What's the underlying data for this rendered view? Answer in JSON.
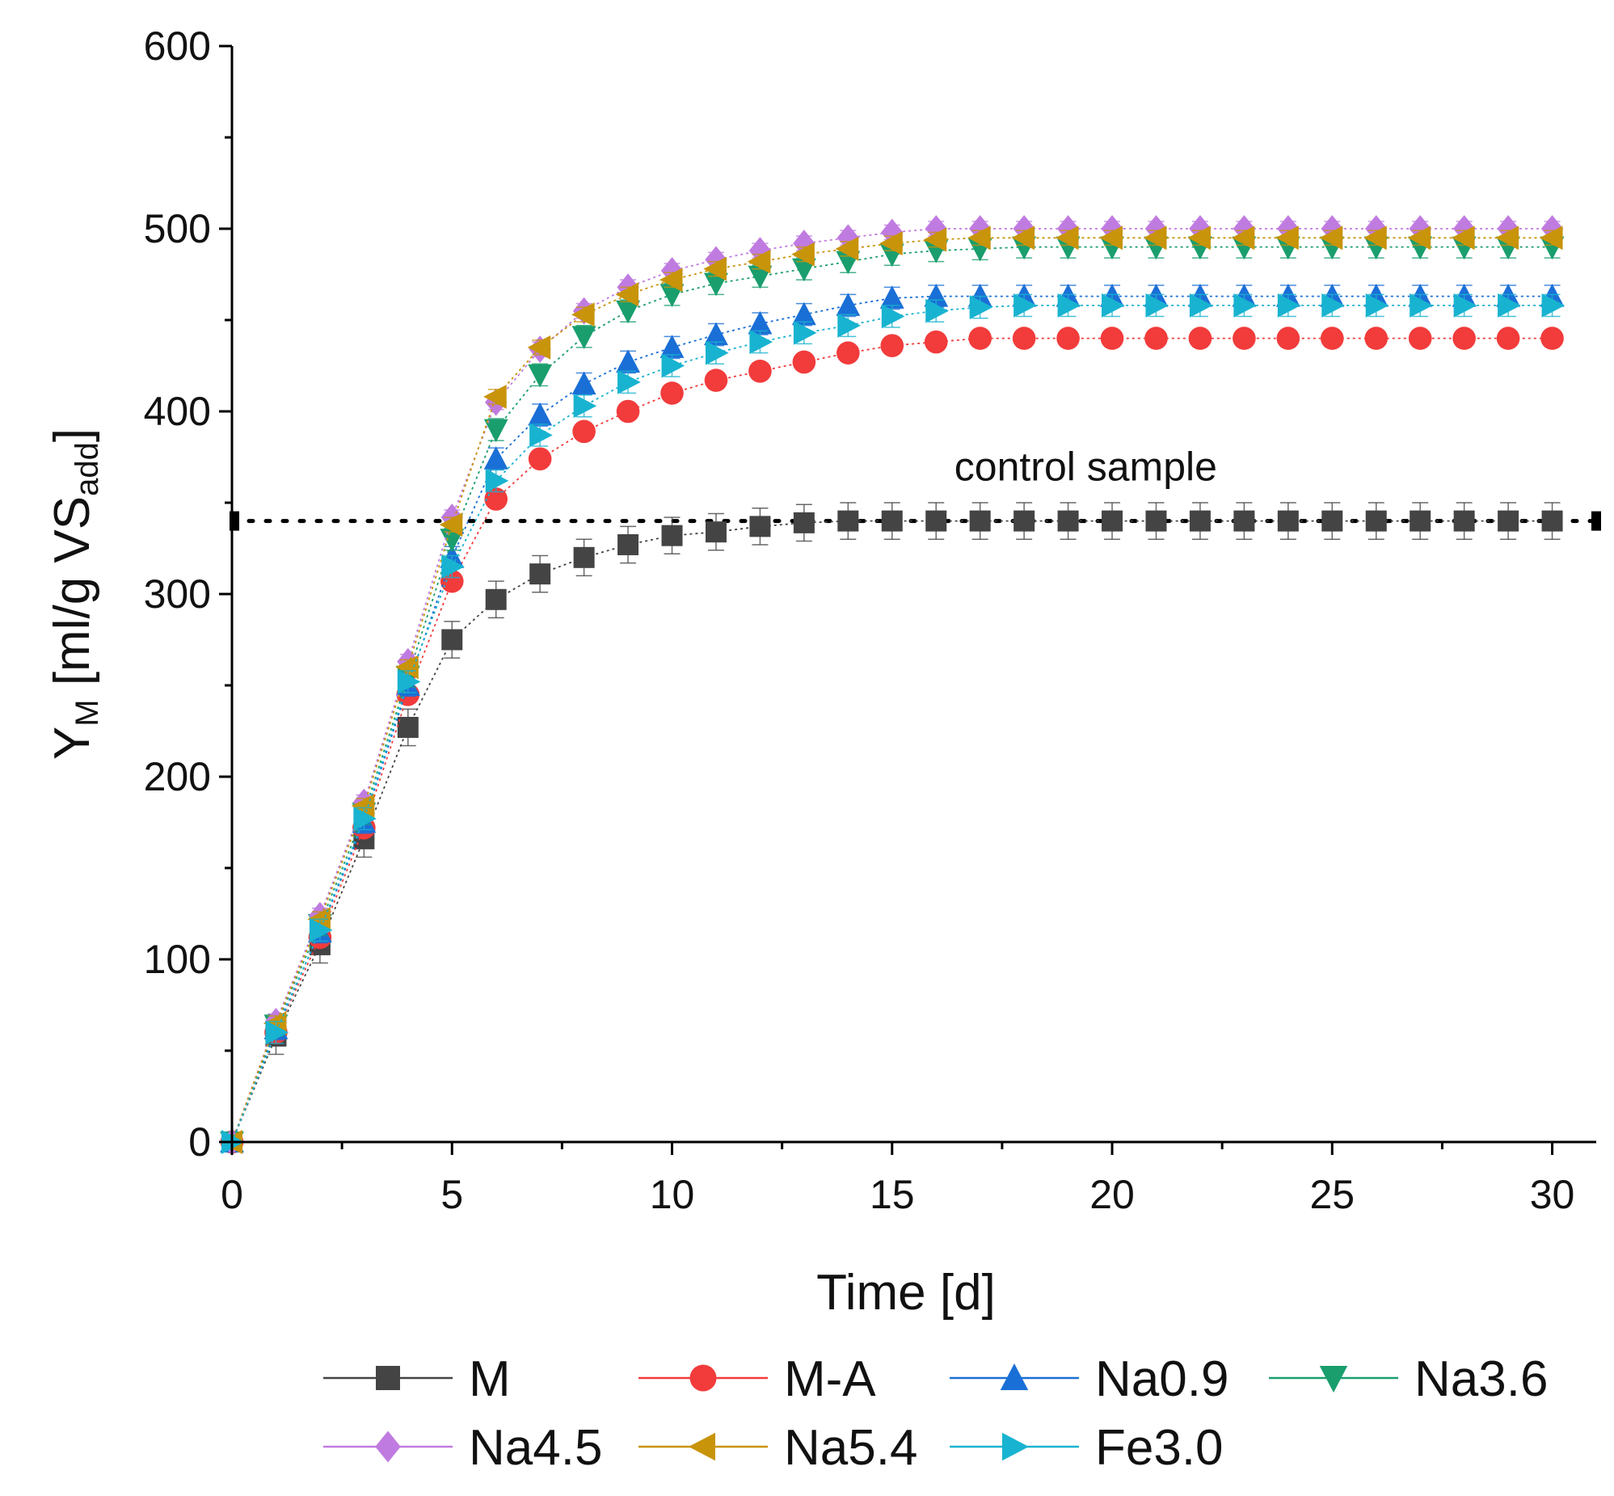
{
  "chart_data": {
    "type": "line",
    "xlabel": "Time [d]",
    "ylabel": {
      "main": "Y",
      "sub": "M",
      "unit_pre": " [ml/g VS",
      "unit_sub": "add",
      "unit_post": "]"
    },
    "xlim": [
      0,
      31
    ],
    "ylim": [
      0,
      600
    ],
    "xticks": [
      0,
      5,
      10,
      15,
      20,
      25,
      30
    ],
    "yticks": [
      0,
      100,
      200,
      300,
      400,
      500,
      600
    ],
    "grid": false,
    "legend_position": "bottom",
    "reference_line": {
      "y": 340,
      "label": "control sample",
      "color": "#000000"
    },
    "x": [
      0,
      1,
      2,
      3,
      4,
      5,
      6,
      7,
      8,
      9,
      10,
      11,
      12,
      13,
      14,
      15,
      16,
      17,
      18,
      19,
      20,
      21,
      22,
      23,
      24,
      25,
      26,
      27,
      28,
      29,
      30
    ],
    "series": [
      {
        "name": "M",
        "color": "#444444",
        "marker": "square",
        "error": 10,
        "values": [
          0,
          58,
          108,
          166,
          227,
          275,
          297,
          311,
          320,
          327,
          332,
          334,
          337,
          339,
          340,
          340,
          340,
          340,
          340,
          340,
          340,
          340,
          340,
          340,
          340,
          340,
          340,
          340,
          340,
          340,
          340
        ]
      },
      {
        "name": "M-A",
        "color": "#f23b3b",
        "marker": "circle",
        "error": 0,
        "values": [
          0,
          60,
          112,
          172,
          245,
          307,
          352,
          374,
          389,
          400,
          410,
          417,
          422,
          427,
          432,
          436,
          438,
          440,
          440,
          440,
          440,
          440,
          440,
          440,
          440,
          440,
          440,
          440,
          440,
          440,
          440
        ]
      },
      {
        "name": "Na0.9",
        "color": "#1a6fd6",
        "marker": "triangle-up",
        "error": 6,
        "values": [
          0,
          62,
          115,
          175,
          250,
          320,
          374,
          398,
          415,
          427,
          435,
          442,
          448,
          453,
          458,
          462,
          463,
          463,
          463,
          463,
          463,
          463,
          463,
          463,
          463,
          463,
          463,
          463,
          463,
          463,
          463
        ]
      },
      {
        "name": "Na3.6",
        "color": "#1a9e6e",
        "marker": "triangle-down",
        "error": 6,
        "values": [
          0,
          64,
          119,
          180,
          255,
          330,
          390,
          420,
          441,
          455,
          464,
          470,
          474,
          478,
          482,
          486,
          488,
          489,
          490,
          490,
          490,
          490,
          490,
          490,
          490,
          490,
          490,
          490,
          490,
          490,
          490
        ]
      },
      {
        "name": "Na4.5",
        "color": "#c07be0",
        "marker": "diamond",
        "error": 4,
        "values": [
          0,
          66,
          124,
          186,
          263,
          342,
          405,
          434,
          455,
          468,
          477,
          483,
          488,
          492,
          495,
          498,
          500,
          500,
          500,
          500,
          500,
          500,
          500,
          500,
          500,
          500,
          500,
          500,
          500,
          500,
          500
        ]
      },
      {
        "name": "Na5.4",
        "color": "#c8940a",
        "marker": "triangle-left",
        "error": 4,
        "values": [
          0,
          65,
          122,
          184,
          260,
          338,
          408,
          435,
          453,
          464,
          472,
          478,
          482,
          486,
          489,
          492,
          494,
          495,
          495,
          495,
          495,
          495,
          495,
          495,
          495,
          495,
          495,
          495,
          495,
          495,
          495
        ]
      },
      {
        "name": "Fe3.0",
        "color": "#18b3d0",
        "marker": "triangle-right",
        "error": 6,
        "values": [
          0,
          60,
          116,
          177,
          252,
          315,
          362,
          387,
          403,
          416,
          425,
          432,
          438,
          443,
          447,
          452,
          455,
          457,
          458,
          458,
          458,
          458,
          458,
          458,
          458,
          458,
          458,
          458,
          458,
          458,
          458
        ]
      }
    ]
  }
}
